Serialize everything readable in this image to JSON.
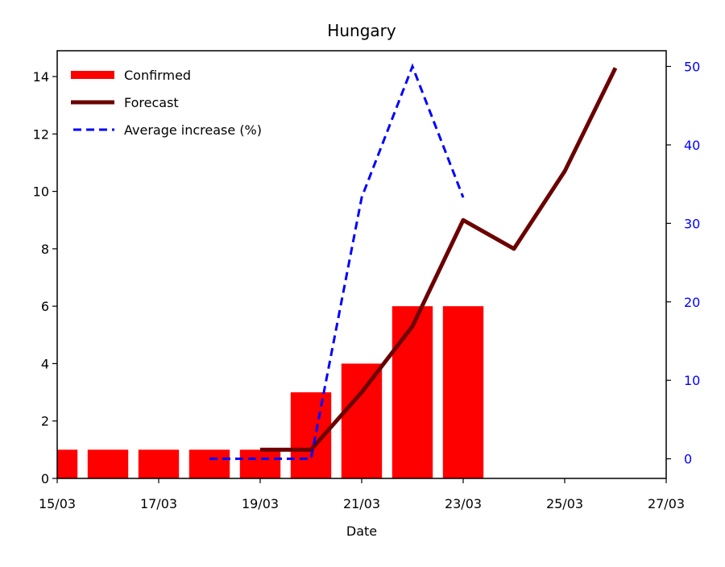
{
  "chart_data": {
    "type": "bar",
    "title": "Hungary",
    "xlabel": "Date",
    "ylabel": "",
    "y2label": "",
    "x_ticks": [
      "15/03",
      "17/03",
      "19/03",
      "21/03",
      "23/03",
      "25/03",
      "27/03"
    ],
    "xlim": [
      "15/03",
      "27/03"
    ],
    "ylim": [
      0,
      14.9
    ],
    "y_ticks": [
      0,
      2,
      4,
      6,
      8,
      10,
      12,
      14
    ],
    "y2lim": [
      -2.5,
      52
    ],
    "y2_ticks": [
      0,
      10,
      20,
      30,
      40,
      50
    ],
    "legend_position": "top-left",
    "grid": false,
    "colors": {
      "confirmed": "#ff0000",
      "forecast": "#6b0000",
      "average": "#0000ff",
      "axis2": "#0000ff"
    },
    "series": [
      {
        "name": "Confirmed",
        "kind": "bar",
        "axis": "left",
        "x": [
          "15/03",
          "16/03",
          "17/03",
          "18/03",
          "19/03",
          "20/03",
          "21/03",
          "22/03",
          "23/03"
        ],
        "values": [
          1,
          1,
          1,
          1,
          1,
          3,
          4,
          6,
          6
        ]
      },
      {
        "name": "Forecast",
        "kind": "line",
        "axis": "left",
        "x": [
          "19/03",
          "20/03",
          "21/03",
          "22/03",
          "23/03",
          "24/03",
          "25/03",
          "26/03"
        ],
        "values": [
          1.0,
          1.0,
          3.0,
          5.3,
          9.0,
          8.0,
          10.7,
          14.3
        ]
      },
      {
        "name": "Average increase (%)",
        "kind": "dashed-line",
        "axis": "right",
        "x": [
          "18/03",
          "19/03",
          "20/03",
          "21/03",
          "22/03",
          "23/03"
        ],
        "values": [
          0,
          0,
          0,
          33.3,
          50,
          33.3
        ]
      }
    ]
  }
}
